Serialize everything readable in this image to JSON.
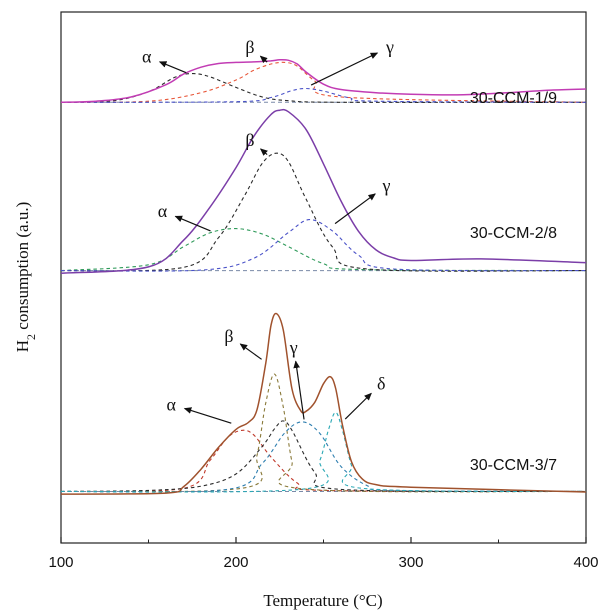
{
  "chart_data": {
    "type": "line",
    "title": "",
    "xlabel": "Temperature (°C)",
    "ylabel": "H2 consumption (a.u.)",
    "ylabel_main": "H",
    "ylabel_sub": "2",
    "ylabel_rest": " consumption (a.u.)",
    "xlim": [
      100,
      400
    ],
    "ylim": [
      0,
      100
    ],
    "xticks": [
      100,
      200,
      300,
      400
    ],
    "grid": false,
    "legend": "none",
    "panels": [
      {
        "name": "30-CCM-1/9",
        "label": "30-CCM-1/9",
        "baseline": 83.0,
        "total_color": "#c23cb4",
        "total": {
          "x": [
            100,
            120,
            140,
            160,
            170,
            180,
            190,
            200,
            210,
            220,
            225,
            230,
            235,
            240,
            250,
            260,
            280,
            300,
            330,
            360,
            380,
            400
          ],
          "y": [
            83.0,
            83.2,
            84.0,
            86.3,
            88.3,
            89.6,
            90.3,
            90.5,
            90.6,
            90.8,
            91.0,
            90.9,
            90.2,
            88.7,
            86.4,
            85.4,
            84.8,
            84.5,
            84.4,
            84.9,
            85.3,
            85.5
          ]
        },
        "components": [
          {
            "label": "α",
            "color": "#2b2b2b",
            "x": [
              100,
              130,
              150,
              165,
              175,
              185,
              200,
              215,
              230,
              260,
              400
            ],
            "y": [
              83.0,
              83.3,
              85.0,
              87.7,
              88.4,
              87.8,
              85.8,
              84.0,
              83.3,
              83.0,
              83.0
            ]
          },
          {
            "label": "β",
            "color": "#e8573a",
            "x": [
              100,
              150,
              180,
              200,
              210,
              220,
              228,
              235,
              245,
              260,
              400
            ],
            "y": [
              83.0,
              83.2,
              84.8,
              87.2,
              89.0,
              90.2,
              90.5,
              89.8,
              87.0,
              84.0,
              83.0
            ]
          },
          {
            "label": "γ",
            "color": "#4a52c8",
            "x": [
              100,
              200,
              220,
              232,
              240,
              250,
              265,
              280,
              400
            ],
            "y": [
              83.0,
              83.1,
              83.9,
              85.2,
              85.6,
              85.1,
              83.8,
              83.2,
              83.0
            ]
          }
        ],
        "annotations": [
          {
            "label": "α",
            "tx": 149,
            "ty": 90.5,
            "ax": 172,
            "ay": 88.5
          },
          {
            "label": "β",
            "tx": 208,
            "ty": 92.3,
            "ax": 218,
            "ay": 90.5
          },
          {
            "label": "γ",
            "tx": 288,
            "ty": 92.3,
            "ax": 242,
            "ay": 86.1
          }
        ]
      },
      {
        "name": "30-CCM-2/8",
        "label": "30-CCM-2/8",
        "baseline": 51.3,
        "total_color": "#7b3ea8",
        "total": {
          "x": [
            100,
            150,
            170,
            185,
            200,
            210,
            220,
            225,
            230,
            240,
            250,
            260,
            270,
            280,
            290,
            300,
            340,
            400
          ],
          "y": [
            50.8,
            52.0,
            57.0,
            63.2,
            70.7,
            76.5,
            80.7,
            81.5,
            81.2,
            77.9,
            71.4,
            64.4,
            58.7,
            55.2,
            53.7,
            53.2,
            53.5,
            52.8
          ]
        },
        "components": [
          {
            "label": "α",
            "color": "#2f9a5a",
            "x": [
              100,
              150,
              170,
              185,
              200,
              215,
              230,
              250,
              270,
              400
            ],
            "y": [
              51.3,
              52.4,
              55.8,
              58.4,
              59.2,
              58.2,
              55.8,
              52.6,
              51.5,
              51.3
            ]
          },
          {
            "label": "β",
            "color": "#2b2b2b",
            "x": [
              100,
              170,
              190,
              205,
              215,
              223,
              230,
              240,
              255,
              275,
              400
            ],
            "y": [
              51.3,
              51.9,
              57.5,
              65.5,
              71.5,
              73.4,
              71.8,
              64.8,
              55.8,
              51.6,
              51.3
            ]
          },
          {
            "label": "γ",
            "color": "#4a52c8",
            "x": [
              100,
              180,
              210,
              230,
              242,
              255,
              270,
              290,
              400
            ],
            "y": [
              51.3,
              51.4,
              53.6,
              58.5,
              60.9,
              58.8,
              54.2,
              51.6,
              51.3
            ]
          }
        ],
        "annotations": [
          {
            "label": "α",
            "tx": 158,
            "ty": 61.4,
            "ax": 186,
            "ay": 58.7
          },
          {
            "label": "β",
            "tx": 208,
            "ty": 74.8,
            "ax": 218,
            "ay": 73.1
          },
          {
            "label": "γ",
            "tx": 286,
            "ty": 66.2,
            "ax": 256,
            "ay": 60.0
          }
        ]
      },
      {
        "name": "30-CCM-3/7",
        "label": "30-CCM-3/7",
        "baseline": 9.7,
        "total_color": "#a0522d",
        "total": {
          "x": [
            100,
            160,
            170,
            180,
            190,
            200,
            207,
            212,
            217,
            220,
            223,
            227,
            232,
            237,
            240,
            245,
            250,
            254,
            257,
            261,
            266,
            272,
            280,
            300,
            400
          ],
          "y": [
            9.2,
            9.4,
            10.6,
            13.9,
            18.0,
            21.4,
            22.7,
            25.1,
            33.9,
            41.0,
            43.2,
            40.1,
            29.0,
            24.9,
            24.8,
            26.5,
            30.0,
            31.3,
            29.0,
            21.9,
            15.3,
            12.1,
            11.0,
            10.5,
            9.6
          ]
        },
        "components": [
          {
            "label": "α",
            "color": "#c0392b",
            "x": [
              100,
              170,
              185,
              195,
              203,
              210,
              220,
              235,
              250,
              400
            ],
            "y": [
              9.7,
              10.3,
              15.5,
              19.8,
              21.2,
              20.4,
              16.2,
              11.3,
              9.9,
              9.7
            ]
          },
          {
            "label": "β",
            "color": "#8a7a3a",
            "x": [
              100,
              205,
              212,
              217,
              222,
              227,
              232,
              238,
              400
            ],
            "y": [
              9.7,
              10.4,
              16.5,
              26.4,
              31.8,
              25.6,
              15.3,
              10.2,
              9.7
            ]
          },
          {
            "label": "",
            "color": "#2b2b2b",
            "x": [
              100,
              150,
              180,
              200,
              215,
              222,
              227,
              232,
              245,
              260,
              400
            ],
            "y": [
              9.7,
              9.9,
              10.7,
              13.0,
              18.2,
              21.5,
              23.0,
              21.2,
              13.3,
              10.1,
              9.7
            ]
          },
          {
            "label": "γ",
            "color": "#2f7fb0",
            "x": [
              100,
              195,
              215,
              228,
              238,
              248,
              260,
              275,
              290,
              400
            ],
            "y": [
              9.7,
              10.1,
              15.0,
              20.8,
              22.8,
              20.6,
              14.4,
              10.8,
              9.9,
              9.7
            ]
          },
          {
            "label": "δ",
            "color": "#2aa8b5",
            "x": [
              100,
              240,
              248,
              253,
              257,
              261,
              266,
              272,
              400
            ],
            "y": [
              9.7,
              10.2,
              15.6,
              21.5,
              24.6,
              21.0,
              14.6,
              10.3,
              9.7
            ]
          }
        ],
        "annotations": [
          {
            "label": "α",
            "tx": 163,
            "ty": 25.0,
            "ax": 198,
            "ay": 22.5
          },
          {
            "label": "β",
            "tx": 196,
            "ty": 37.9,
            "ax": 215,
            "ay": 34.5
          },
          {
            "label": "γ",
            "tx": 233,
            "ty": 35.7,
            "ax": 239,
            "ay": 23.0
          },
          {
            "label": "δ",
            "tx": 283,
            "ty": 28.9,
            "ax": 262,
            "ay": 23.2
          }
        ]
      }
    ]
  }
}
